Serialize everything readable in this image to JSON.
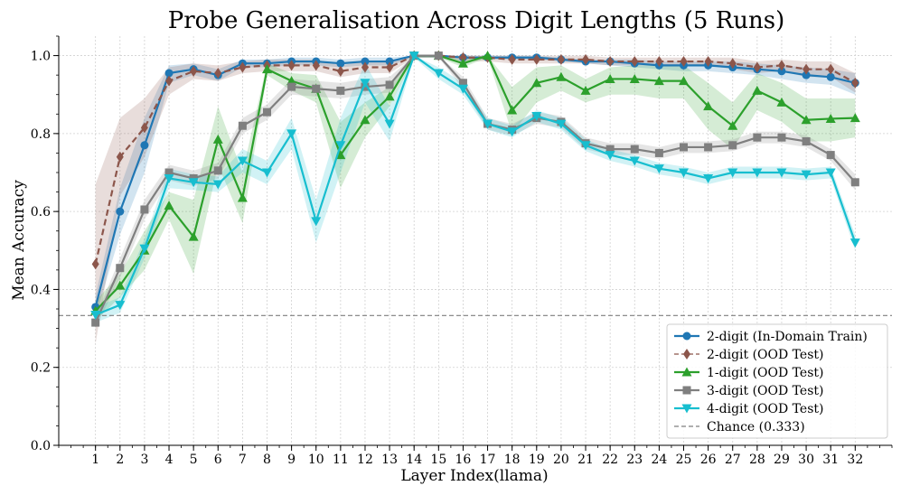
{
  "chart_data": {
    "type": "line",
    "title": "Probe Generalisation Across Digit Lengths (5 Runs)",
    "xlabel": "Layer Index(llama)",
    "ylabel": "Mean Accuracy",
    "ylim": [
      0.0,
      1.05
    ],
    "xlim": [
      -0.5,
      33.5
    ],
    "yticks": [
      0.0,
      0.2,
      0.4,
      0.6,
      0.8,
      1.0
    ],
    "ytick_labels": [
      "0.0",
      "0.2",
      "0.4",
      "0.6",
      "0.8",
      "1.0"
    ],
    "categories": [
      1,
      2,
      3,
      4,
      5,
      6,
      7,
      8,
      9,
      10,
      11,
      12,
      13,
      14,
      15,
      16,
      17,
      18,
      19,
      20,
      21,
      22,
      23,
      24,
      25,
      26,
      27,
      28,
      29,
      30,
      31,
      32
    ],
    "category_labels": [
      "1",
      "2",
      "3",
      "4",
      "5",
      "6",
      "7",
      "8",
      "9",
      "10",
      "11",
      "12",
      "13",
      "14",
      "15",
      "16",
      "17",
      "18",
      "19",
      "20",
      "21",
      "22",
      "23",
      "24",
      "25",
      "26",
      "27",
      "28",
      "29",
      "30",
      "31",
      "32"
    ],
    "grid": true,
    "legend_position": "lower-right",
    "series": [
      {
        "name": "2-digit (In-Domain Train)",
        "color": "#1f77b4",
        "marker": "circle",
        "linestyle": "solid",
        "values": [
          0.355,
          0.6,
          0.77,
          0.955,
          0.965,
          0.95,
          0.98,
          0.98,
          0.985,
          0.985,
          0.98,
          0.985,
          0.985,
          1.0,
          1.0,
          0.995,
          0.995,
          0.995,
          0.995,
          0.99,
          0.985,
          0.985,
          0.98,
          0.975,
          0.975,
          0.975,
          0.97,
          0.965,
          0.96,
          0.95,
          0.945,
          0.93
        ],
        "lower": [
          0.33,
          0.54,
          0.7,
          0.93,
          0.95,
          0.935,
          0.97,
          0.97,
          0.975,
          0.975,
          0.97,
          0.975,
          0.975,
          0.995,
          0.995,
          0.99,
          0.99,
          0.99,
          0.99,
          0.985,
          0.98,
          0.975,
          0.97,
          0.965,
          0.96,
          0.96,
          0.955,
          0.95,
          0.94,
          0.93,
          0.925,
          0.9
        ],
        "upper": [
          0.385,
          0.66,
          0.84,
          0.975,
          0.98,
          0.965,
          0.99,
          0.99,
          0.995,
          0.995,
          0.99,
          0.995,
          0.995,
          1.0,
          1.0,
          1.0,
          1.0,
          1.0,
          1.0,
          0.995,
          0.99,
          0.99,
          0.99,
          0.985,
          0.985,
          0.985,
          0.985,
          0.98,
          0.975,
          0.97,
          0.965,
          0.955
        ]
      },
      {
        "name": "2-digit (OOD Test)",
        "color": "#8c564b",
        "marker": "diamond",
        "linestyle": "dashed",
        "values": [
          0.465,
          0.74,
          0.815,
          0.935,
          0.96,
          0.955,
          0.97,
          0.975,
          0.975,
          0.975,
          0.96,
          0.97,
          0.97,
          1.0,
          1.0,
          0.995,
          0.995,
          0.99,
          0.99,
          0.99,
          0.99,
          0.985,
          0.985,
          0.985,
          0.985,
          0.985,
          0.98,
          0.97,
          0.975,
          0.965,
          0.965,
          0.93
        ],
        "lower": [
          0.26,
          0.64,
          0.74,
          0.9,
          0.94,
          0.935,
          0.955,
          0.96,
          0.96,
          0.96,
          0.945,
          0.955,
          0.955,
          0.995,
          0.995,
          0.985,
          0.985,
          0.98,
          0.98,
          0.98,
          0.98,
          0.975,
          0.975,
          0.975,
          0.975,
          0.975,
          0.965,
          0.955,
          0.96,
          0.945,
          0.945,
          0.905
        ],
        "upper": [
          0.67,
          0.84,
          0.89,
          0.97,
          0.98,
          0.975,
          0.985,
          0.99,
          0.99,
          0.99,
          0.975,
          0.985,
          0.985,
          1.0,
          1.0,
          1.0,
          1.0,
          1.0,
          1.0,
          1.0,
          1.0,
          0.995,
          0.995,
          0.995,
          0.995,
          0.995,
          0.995,
          0.985,
          0.99,
          0.985,
          0.985,
          0.955
        ]
      },
      {
        "name": "1-digit (OOD Test)",
        "color": "#2ca02c",
        "marker": "triangle-up",
        "linestyle": "solid",
        "values": [
          0.345,
          0.41,
          0.5,
          0.615,
          0.535,
          0.785,
          0.635,
          0.965,
          0.935,
          0.915,
          0.745,
          0.835,
          0.895,
          1.0,
          1.0,
          0.98,
          1.0,
          0.86,
          0.93,
          0.945,
          0.91,
          0.94,
          0.94,
          0.935,
          0.935,
          0.87,
          0.82,
          0.91,
          0.88,
          0.835,
          0.838,
          0.84
        ],
        "lower": [
          0.32,
          0.38,
          0.45,
          0.58,
          0.44,
          0.72,
          0.57,
          0.95,
          0.91,
          0.88,
          0.66,
          0.79,
          0.87,
          0.995,
          0.995,
          0.97,
          0.995,
          0.8,
          0.88,
          0.91,
          0.88,
          0.9,
          0.9,
          0.89,
          0.89,
          0.81,
          0.76,
          0.86,
          0.83,
          0.78,
          0.78,
          0.79
        ],
        "upper": [
          0.37,
          0.44,
          0.55,
          0.65,
          0.63,
          0.87,
          0.7,
          0.98,
          0.955,
          0.95,
          0.83,
          0.88,
          0.92,
          1.0,
          1.0,
          0.99,
          1.0,
          0.92,
          0.97,
          0.975,
          0.94,
          0.97,
          0.975,
          0.975,
          0.975,
          0.93,
          0.88,
          0.955,
          0.93,
          0.89,
          0.89,
          0.89
        ]
      },
      {
        "name": "3-digit (OOD Test)",
        "color": "#7f7f7f",
        "marker": "square",
        "linestyle": "solid",
        "values": [
          0.315,
          0.455,
          0.605,
          0.7,
          0.685,
          0.705,
          0.82,
          0.855,
          0.92,
          0.915,
          0.91,
          0.92,
          0.925,
          1.0,
          1.0,
          0.93,
          0.825,
          0.81,
          0.84,
          0.83,
          0.775,
          0.76,
          0.76,
          0.75,
          0.765,
          0.765,
          0.77,
          0.79,
          0.79,
          0.78,
          0.745,
          0.675
        ],
        "lower": [
          0.3,
          0.43,
          0.58,
          0.68,
          0.665,
          0.685,
          0.8,
          0.835,
          0.9,
          0.895,
          0.89,
          0.9,
          0.905,
          0.995,
          0.995,
          0.915,
          0.81,
          0.795,
          0.825,
          0.815,
          0.76,
          0.745,
          0.745,
          0.735,
          0.75,
          0.75,
          0.755,
          0.775,
          0.775,
          0.765,
          0.73,
          0.655
        ],
        "upper": [
          0.33,
          0.48,
          0.63,
          0.72,
          0.705,
          0.725,
          0.84,
          0.875,
          0.94,
          0.935,
          0.93,
          0.94,
          0.945,
          1.0,
          1.0,
          0.945,
          0.84,
          0.825,
          0.855,
          0.845,
          0.79,
          0.775,
          0.775,
          0.765,
          0.78,
          0.78,
          0.785,
          0.805,
          0.805,
          0.795,
          0.76,
          0.695
        ]
      },
      {
        "name": "4-digit (OOD Test)",
        "color": "#17becf",
        "marker": "triangle-down",
        "linestyle": "solid",
        "values": [
          0.335,
          0.36,
          0.505,
          0.685,
          0.675,
          0.67,
          0.73,
          0.7,
          0.8,
          0.575,
          0.77,
          0.93,
          0.825,
          1.0,
          0.955,
          0.915,
          0.825,
          0.805,
          0.845,
          0.825,
          0.77,
          0.745,
          0.73,
          0.71,
          0.7,
          0.685,
          0.7,
          0.7,
          0.7,
          0.695,
          0.7,
          0.52
        ],
        "lower": [
          0.315,
          0.34,
          0.48,
          0.66,
          0.655,
          0.65,
          0.7,
          0.67,
          0.76,
          0.52,
          0.7,
          0.88,
          0.78,
          0.995,
          0.94,
          0.9,
          0.81,
          0.79,
          0.83,
          0.81,
          0.755,
          0.73,
          0.715,
          0.695,
          0.685,
          0.67,
          0.685,
          0.685,
          0.685,
          0.68,
          0.685,
          0.5
        ],
        "upper": [
          0.355,
          0.38,
          0.53,
          0.71,
          0.695,
          0.69,
          0.76,
          0.73,
          0.84,
          0.63,
          0.84,
          0.98,
          0.87,
          1.0,
          0.97,
          0.93,
          0.84,
          0.82,
          0.86,
          0.84,
          0.785,
          0.76,
          0.745,
          0.725,
          0.715,
          0.7,
          0.715,
          0.715,
          0.715,
          0.71,
          0.715,
          0.54
        ]
      }
    ],
    "reference_line": {
      "name": "Chance (0.333)",
      "value": 0.333,
      "color": "#7f7f7f",
      "linestyle": "dashed"
    }
  }
}
